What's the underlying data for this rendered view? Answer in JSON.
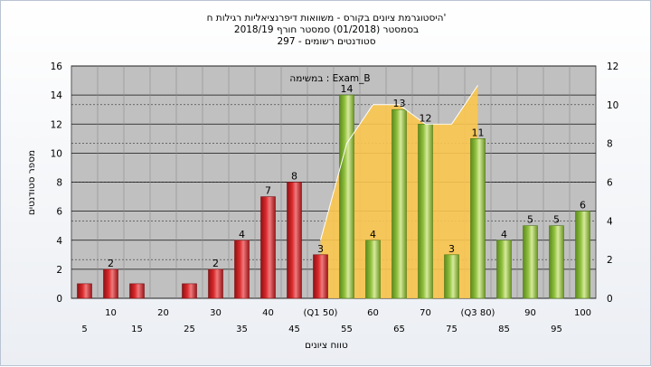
{
  "chart_data": {
    "type": "bar",
    "title": "היסטוגרמת ציונים בקורס - משוואות דיפרנציאליות רגילות ח'",
    "subtitle": "בסמסטר  (01/2018)  סמסטר חורף 2018/19",
    "students_line": "סטודנטים רשומים - 297",
    "legend_label": "במשימה : Exam_B",
    "xlabel": "טווח ציונים",
    "ylabel": "מספר סטודנטים",
    "ylim": [
      0,
      16
    ],
    "y2lim": [
      0,
      12
    ],
    "yticks": [
      "0",
      "2",
      "4",
      "6",
      "8",
      "10",
      "12",
      "14",
      "16"
    ],
    "y2ticks": [
      "0",
      "2",
      "4",
      "6",
      "8",
      "10",
      "12"
    ],
    "grid": true,
    "categories": [
      "5",
      "10",
      "15",
      "20",
      "25",
      "30",
      "35",
      "40",
      "45",
      "(Q1 50)",
      "55",
      "60",
      "65",
      "70",
      "75",
      "(Q3 80)",
      "85",
      "90",
      "95",
      "100"
    ],
    "values": [
      1,
      2,
      1,
      0,
      1,
      2,
      4,
      7,
      8,
      3,
      14,
      4,
      13,
      12,
      3,
      11,
      4,
      5,
      5,
      6
    ],
    "value_labels": [
      "",
      "2",
      "",
      "",
      "",
      "2",
      "4",
      "7",
      "8",
      "3",
      "14",
      "4",
      "13",
      "12",
      "3",
      "11",
      "4",
      "5",
      "5",
      "6"
    ],
    "bar_colors": [
      "red",
      "red",
      "red",
      "red",
      "red",
      "red",
      "red",
      "red",
      "red",
      "red",
      "green",
      "green",
      "green",
      "green",
      "green",
      "green",
      "green",
      "green",
      "green",
      "green"
    ],
    "area_series": {
      "x_start": "(Q1 50)",
      "x_end": "(Q3 80)",
      "values": [
        3,
        8,
        10,
        10,
        9,
        9,
        11
      ],
      "axis": "right"
    },
    "colors": {
      "plot_bg": "#c0c0c0",
      "red_bar": "#d9282a",
      "green_bar": "#8fbf3c",
      "area": "#fbc64e",
      "frame_bg": "#ebeef3"
    }
  }
}
